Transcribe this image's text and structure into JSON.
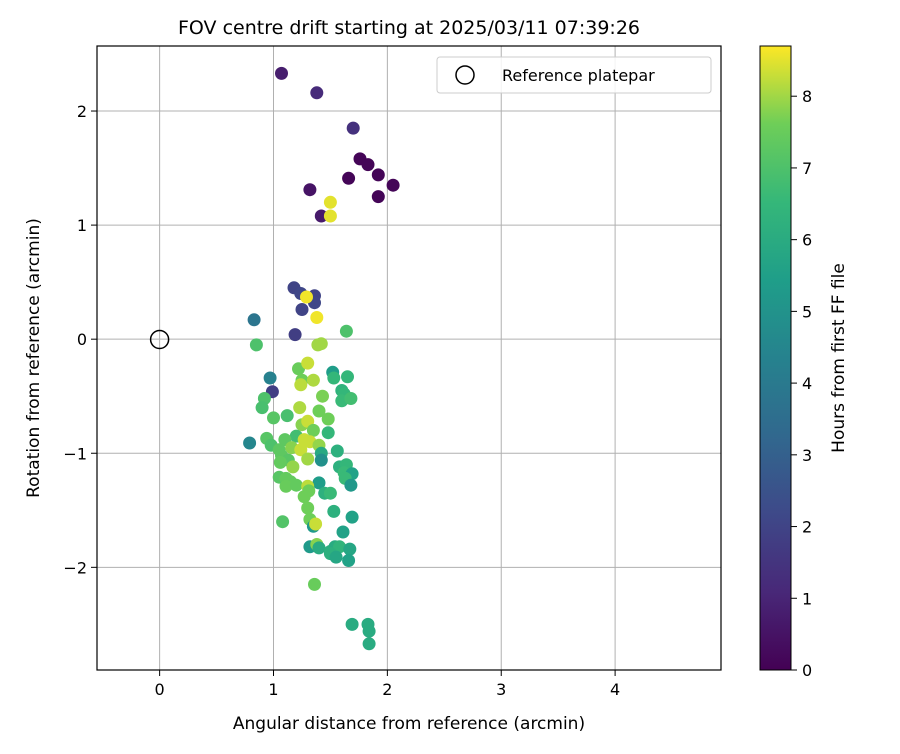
{
  "chart_data": {
    "type": "scatter",
    "title": "FOV centre drift starting at 2025/03/11 07:39:26",
    "xlabel": "Angular distance from reference (arcmin)",
    "ylabel": "Rotation from reference (arcmin)",
    "xlim": [
      -0.55,
      4.93
    ],
    "ylim": [
      -2.9,
      2.57
    ],
    "xticks": [
      "0",
      "1",
      "2",
      "3",
      "4"
    ],
    "yticks": [
      "2",
      "1",
      "0",
      "−1",
      "−2"
    ],
    "grid": true,
    "legend": {
      "position": "top-right",
      "entries": [
        "Reference platepar"
      ]
    },
    "reference": {
      "x": 0,
      "y": 0
    },
    "colorbar": {
      "label": "Hours from first FF file",
      "range": [
        0,
        8.7
      ],
      "ticks": [
        "0",
        "1",
        "2",
        "3",
        "4",
        "5",
        "6",
        "7",
        "8"
      ],
      "colormap": "viridis"
    },
    "points": [
      {
        "x": 1.07,
        "y": 2.33,
        "t": 0.8
      },
      {
        "x": 1.38,
        "y": 2.16,
        "t": 1.2
      },
      {
        "x": 1.7,
        "y": 1.85,
        "t": 1.4
      },
      {
        "x": 1.76,
        "y": 1.58,
        "t": 0.1
      },
      {
        "x": 1.83,
        "y": 1.53,
        "t": 0.1
      },
      {
        "x": 1.92,
        "y": 1.44,
        "t": 0.1
      },
      {
        "x": 1.66,
        "y": 1.41,
        "t": 0.1
      },
      {
        "x": 2.05,
        "y": 1.35,
        "t": 0.1
      },
      {
        "x": 1.32,
        "y": 1.31,
        "t": 0.5
      },
      {
        "x": 1.92,
        "y": 1.25,
        "t": 0.1
      },
      {
        "x": 1.42,
        "y": 1.08,
        "t": 0.7
      },
      {
        "x": 1.5,
        "y": 1.2,
        "t": 8.5
      },
      {
        "x": 1.5,
        "y": 1.08,
        "t": 8.5
      },
      {
        "x": 1.18,
        "y": 0.45,
        "t": 2.0
      },
      {
        "x": 1.24,
        "y": 0.4,
        "t": 2.1
      },
      {
        "x": 1.36,
        "y": 0.38,
        "t": 2.0
      },
      {
        "x": 1.36,
        "y": 0.32,
        "t": 2.1
      },
      {
        "x": 1.25,
        "y": 0.26,
        "t": 2.0
      },
      {
        "x": 1.29,
        "y": 0.37,
        "t": 8.6
      },
      {
        "x": 1.38,
        "y": 0.19,
        "t": 8.6
      },
      {
        "x": 0.83,
        "y": 0.17,
        "t": 3.8
      },
      {
        "x": 1.19,
        "y": 0.04,
        "t": 1.8
      },
      {
        "x": 1.64,
        "y": 0.07,
        "t": 7.0
      },
      {
        "x": 0.85,
        "y": -0.05,
        "t": 7.0
      },
      {
        "x": 1.39,
        "y": -0.05,
        "t": 8.0
      },
      {
        "x": 1.42,
        "y": -0.04,
        "t": 8.0
      },
      {
        "x": 0.99,
        "y": -0.46,
        "t": 1.8
      },
      {
        "x": 0.97,
        "y": -0.34,
        "t": 4.3
      },
      {
        "x": 1.22,
        "y": -0.26,
        "t": 7.5
      },
      {
        "x": 1.3,
        "y": -0.21,
        "t": 8.3
      },
      {
        "x": 1.25,
        "y": -0.36,
        "t": 7.6
      },
      {
        "x": 1.24,
        "y": -0.4,
        "t": 8.2
      },
      {
        "x": 1.35,
        "y": -0.36,
        "t": 8.1
      },
      {
        "x": 1.52,
        "y": -0.29,
        "t": 5.4
      },
      {
        "x": 1.53,
        "y": -0.34,
        "t": 6.5
      },
      {
        "x": 1.65,
        "y": -0.33,
        "t": 6.5
      },
      {
        "x": 1.6,
        "y": -0.45,
        "t": 6.3
      },
      {
        "x": 1.62,
        "y": -0.48,
        "t": 6.5
      },
      {
        "x": 1.43,
        "y": -0.5,
        "t": 7.7
      },
      {
        "x": 1.6,
        "y": -0.54,
        "t": 6.6
      },
      {
        "x": 1.68,
        "y": -0.52,
        "t": 6.8
      },
      {
        "x": 0.92,
        "y": -0.52,
        "t": 7.0
      },
      {
        "x": 0.9,
        "y": -0.6,
        "t": 6.9
      },
      {
        "x": 1.23,
        "y": -0.6,
        "t": 8.1
      },
      {
        "x": 1.4,
        "y": -0.63,
        "t": 7.6
      },
      {
        "x": 1.12,
        "y": -0.67,
        "t": 6.9
      },
      {
        "x": 1.0,
        "y": -0.69,
        "t": 7.2
      },
      {
        "x": 1.48,
        "y": -0.7,
        "t": 7.6
      },
      {
        "x": 1.25,
        "y": -0.75,
        "t": 7.8
      },
      {
        "x": 1.3,
        "y": -0.72,
        "t": 8.3
      },
      {
        "x": 1.35,
        "y": -0.8,
        "t": 7.6
      },
      {
        "x": 1.48,
        "y": -0.82,
        "t": 6.5
      },
      {
        "x": 1.2,
        "y": -0.85,
        "t": 6.8
      },
      {
        "x": 0.94,
        "y": -0.87,
        "t": 7.2
      },
      {
        "x": 1.1,
        "y": -0.88,
        "t": 7.3
      },
      {
        "x": 1.27,
        "y": -0.88,
        "t": 8.3
      },
      {
        "x": 1.32,
        "y": -0.9,
        "t": 8.3
      },
      {
        "x": 1.4,
        "y": -0.93,
        "t": 7.9
      },
      {
        "x": 0.79,
        "y": -0.91,
        "t": 4.5
      },
      {
        "x": 0.98,
        "y": -0.93,
        "t": 7.0
      },
      {
        "x": 1.05,
        "y": -0.97,
        "t": 7.3
      },
      {
        "x": 1.16,
        "y": -0.95,
        "t": 7.8
      },
      {
        "x": 1.24,
        "y": -0.97,
        "t": 8.3
      },
      {
        "x": 1.42,
        "y": -1.0,
        "t": 5.9
      },
      {
        "x": 1.56,
        "y": -0.98,
        "t": 6.2
      },
      {
        "x": 1.07,
        "y": -1.02,
        "t": 7.3
      },
      {
        "x": 1.13,
        "y": -1.06,
        "t": 7.2
      },
      {
        "x": 1.42,
        "y": -1.06,
        "t": 4.9
      },
      {
        "x": 1.06,
        "y": -1.08,
        "t": 7.4
      },
      {
        "x": 1.3,
        "y": -1.05,
        "t": 8.0
      },
      {
        "x": 1.58,
        "y": -1.12,
        "t": 6.2
      },
      {
        "x": 1.64,
        "y": -1.1,
        "t": 6.5
      },
      {
        "x": 1.17,
        "y": -1.12,
        "t": 7.9
      },
      {
        "x": 1.62,
        "y": -1.17,
        "t": 6.6
      },
      {
        "x": 1.69,
        "y": -1.18,
        "t": 5.6
      },
      {
        "x": 1.05,
        "y": -1.21,
        "t": 7.2
      },
      {
        "x": 1.11,
        "y": -1.22,
        "t": 7.4
      },
      {
        "x": 1.15,
        "y": -1.25,
        "t": 7.4
      },
      {
        "x": 1.63,
        "y": -1.22,
        "t": 6.6
      },
      {
        "x": 1.4,
        "y": -1.26,
        "t": 5.4
      },
      {
        "x": 1.68,
        "y": -1.28,
        "t": 5.2
      },
      {
        "x": 1.11,
        "y": -1.29,
        "t": 7.5
      },
      {
        "x": 1.2,
        "y": -1.28,
        "t": 7.4
      },
      {
        "x": 1.3,
        "y": -1.29,
        "t": 8.2
      },
      {
        "x": 1.31,
        "y": -1.33,
        "t": 7.6
      },
      {
        "x": 1.45,
        "y": -1.35,
        "t": 6.2
      },
      {
        "x": 1.5,
        "y": -1.35,
        "t": 6.6
      },
      {
        "x": 1.27,
        "y": -1.38,
        "t": 7.6
      },
      {
        "x": 1.3,
        "y": -1.48,
        "t": 7.6
      },
      {
        "x": 1.53,
        "y": -1.51,
        "t": 6.2
      },
      {
        "x": 1.69,
        "y": -1.56,
        "t": 5.6
      },
      {
        "x": 1.08,
        "y": -1.6,
        "t": 7.1
      },
      {
        "x": 1.32,
        "y": -1.58,
        "t": 7.6
      },
      {
        "x": 1.35,
        "y": -1.64,
        "t": 5.3
      },
      {
        "x": 1.37,
        "y": -1.62,
        "t": 8.3
      },
      {
        "x": 1.61,
        "y": -1.69,
        "t": 5.6
      },
      {
        "x": 1.32,
        "y": -1.82,
        "t": 5.3
      },
      {
        "x": 1.38,
        "y": -1.8,
        "t": 7.8
      },
      {
        "x": 1.4,
        "y": -1.83,
        "t": 6.0
      },
      {
        "x": 1.5,
        "y": -1.86,
        "t": 6.2
      },
      {
        "x": 1.54,
        "y": -1.82,
        "t": 6.0
      },
      {
        "x": 1.58,
        "y": -1.82,
        "t": 6.4
      },
      {
        "x": 1.67,
        "y": -1.84,
        "t": 5.8
      },
      {
        "x": 1.5,
        "y": -1.88,
        "t": 6.2
      },
      {
        "x": 1.55,
        "y": -1.91,
        "t": 5.8
      },
      {
        "x": 1.66,
        "y": -1.94,
        "t": 5.6
      },
      {
        "x": 1.36,
        "y": -2.15,
        "t": 7.5
      },
      {
        "x": 1.69,
        "y": -2.5,
        "t": 6.0
      },
      {
        "x": 1.83,
        "y": -2.5,
        "t": 6.0
      },
      {
        "x": 1.84,
        "y": -2.56,
        "t": 6.0
      },
      {
        "x": 1.84,
        "y": -2.67,
        "t": 6.0
      }
    ]
  }
}
